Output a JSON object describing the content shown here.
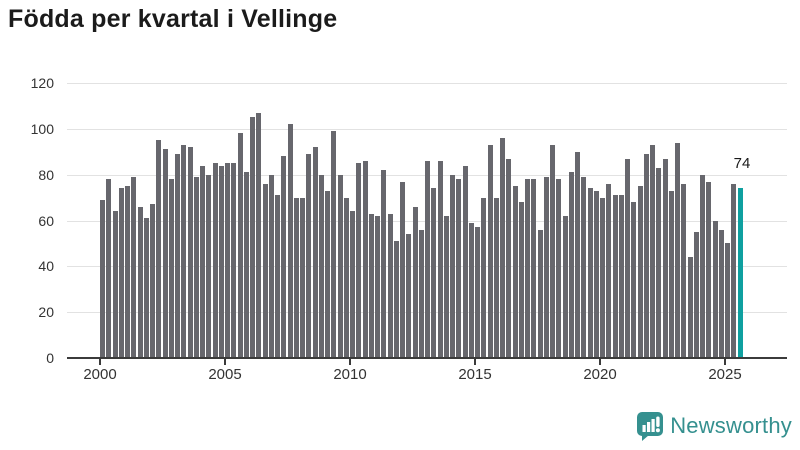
{
  "title": "Födda per kvartal i Vellinge",
  "chart_data": {
    "type": "bar",
    "title": "Födda per kvartal i Vellinge",
    "frequency": "quarterly",
    "x_start": "2000-Q1",
    "x_end": "2025-Q3",
    "values": [
      69,
      78,
      64,
      74,
      75,
      79,
      66,
      61,
      67,
      95,
      91,
      78,
      89,
      93,
      92,
      79,
      84,
      80,
      85,
      84,
      85,
      85,
      98,
      81,
      105,
      107,
      76,
      80,
      71,
      88,
      102,
      70,
      70,
      89,
      92,
      80,
      73,
      99,
      80,
      70,
      64,
      85,
      86,
      63,
      62,
      82,
      63,
      51,
      77,
      54,
      66,
      56,
      86,
      74,
      86,
      62,
      80,
      78,
      84,
      59,
      57,
      70,
      93,
      70,
      96,
      87,
      75,
      68,
      78,
      78,
      56,
      79,
      93,
      78,
      62,
      81,
      90,
      79,
      74,
      73,
      70,
      76,
      71,
      71,
      87,
      68,
      75,
      89,
      93,
      83,
      87,
      73,
      94,
      76,
      44,
      55,
      80,
      77,
      60,
      56,
      50,
      76,
      74
    ],
    "x_tick_labels": [
      "2000",
      "2005",
      "2010",
      "2015",
      "2020",
      "2025"
    ],
    "y_ticks": [
      0,
      20,
      40,
      60,
      80,
      100,
      120
    ],
    "ylim": [
      0,
      120
    ],
    "grid": "horizontal",
    "legend": "none",
    "bar_color": "#67676d",
    "highlight": {
      "index": 102,
      "label": "74",
      "color": "#0fa0a0"
    }
  },
  "colors": {
    "background": "#ffffff",
    "gridline": "#e2e2e2",
    "axis": "#3b3b3b",
    "axis_text": "#333333",
    "title_text": "#1b1b1b",
    "bar": "#67676d",
    "highlight_bar": "#0fa0a0",
    "logo": "#35908f"
  },
  "branding": {
    "logo_text": "Newsworthy",
    "logo_icon": "bar-chart-speech-bubble-icon"
  }
}
